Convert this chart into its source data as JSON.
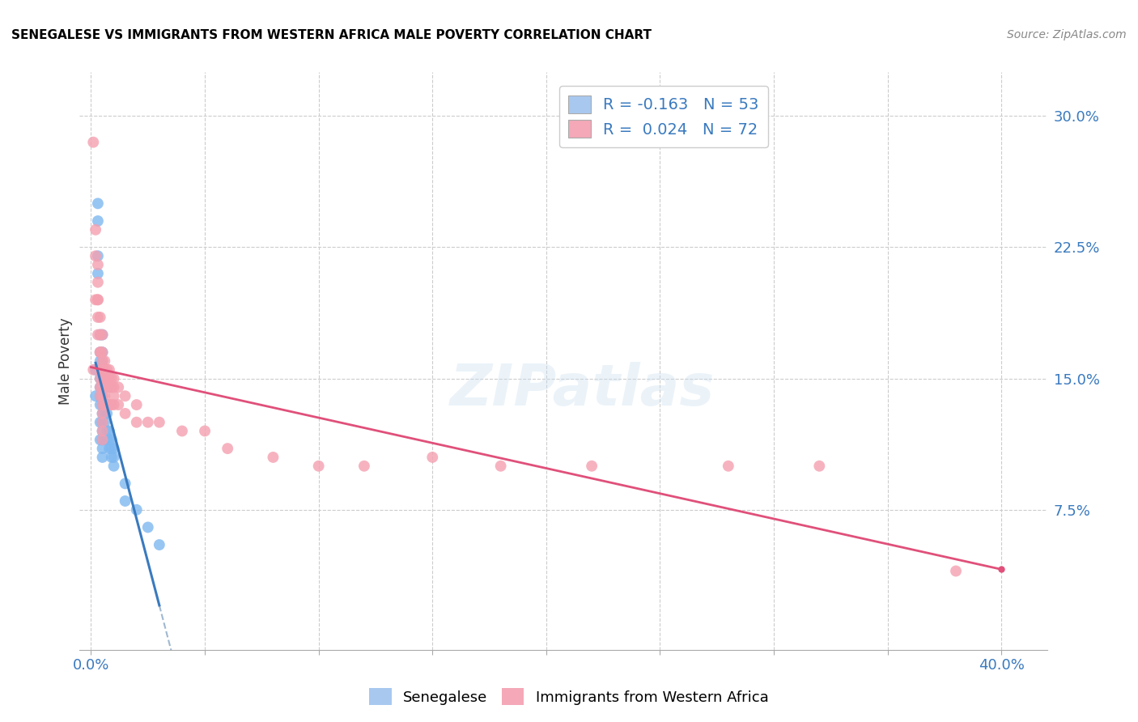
{
  "title": "SENEGALESE VS IMMIGRANTS FROM WESTERN AFRICA MALE POVERTY CORRELATION CHART",
  "source": "Source: ZipAtlas.com",
  "ylabel": "Male Poverty",
  "ytick_labels": [
    "7.5%",
    "15.0%",
    "22.5%",
    "30.0%"
  ],
  "ytick_values": [
    0.075,
    0.15,
    0.225,
    0.3
  ],
  "xtick_values": [
    0.0,
    0.05,
    0.1,
    0.15,
    0.2,
    0.25,
    0.3,
    0.35,
    0.4
  ],
  "xlim": [
    -0.005,
    0.42
  ],
  "ylim": [
    -0.005,
    0.325
  ],
  "legend1_label": "R = -0.163   N = 53",
  "legend2_label": "R =  0.024   N = 72",
  "legend1_color": "#a8c8f0",
  "legend2_color": "#f4a8b8",
  "scatter1_color": "#7eb8f0",
  "scatter2_color": "#f4a0b0",
  "line1_color": "#3a7abf",
  "line2_color": "#e0507a",
  "trend1_color": "#a0b8d0",
  "watermark": "ZIPatlas",
  "senegalese_x": [
    0.002,
    0.002,
    0.003,
    0.003,
    0.003,
    0.003,
    0.004,
    0.004,
    0.004,
    0.004,
    0.004,
    0.004,
    0.004,
    0.004,
    0.004,
    0.004,
    0.005,
    0.005,
    0.005,
    0.005,
    0.005,
    0.005,
    0.005,
    0.005,
    0.005,
    0.005,
    0.005,
    0.005,
    0.005,
    0.005,
    0.006,
    0.006,
    0.006,
    0.006,
    0.006,
    0.007,
    0.007,
    0.007,
    0.007,
    0.008,
    0.008,
    0.008,
    0.009,
    0.009,
    0.009,
    0.01,
    0.01,
    0.01,
    0.015,
    0.015,
    0.02,
    0.025,
    0.03
  ],
  "senegalese_y": [
    0.155,
    0.14,
    0.25,
    0.24,
    0.22,
    0.21,
    0.175,
    0.165,
    0.16,
    0.155,
    0.15,
    0.145,
    0.14,
    0.135,
    0.125,
    0.115,
    0.175,
    0.165,
    0.16,
    0.155,
    0.15,
    0.145,
    0.14,
    0.135,
    0.13,
    0.125,
    0.12,
    0.115,
    0.11,
    0.105,
    0.145,
    0.135,
    0.13,
    0.125,
    0.115,
    0.135,
    0.13,
    0.12,
    0.115,
    0.12,
    0.115,
    0.11,
    0.115,
    0.11,
    0.105,
    0.11,
    0.105,
    0.1,
    0.09,
    0.08,
    0.075,
    0.065,
    0.055
  ],
  "western_africa_x": [
    0.001,
    0.001,
    0.002,
    0.002,
    0.002,
    0.003,
    0.003,
    0.003,
    0.003,
    0.003,
    0.003,
    0.004,
    0.004,
    0.004,
    0.004,
    0.004,
    0.004,
    0.004,
    0.004,
    0.005,
    0.005,
    0.005,
    0.005,
    0.005,
    0.005,
    0.005,
    0.005,
    0.005,
    0.005,
    0.005,
    0.005,
    0.006,
    0.006,
    0.006,
    0.006,
    0.006,
    0.006,
    0.007,
    0.007,
    0.007,
    0.007,
    0.008,
    0.008,
    0.008,
    0.008,
    0.009,
    0.009,
    0.009,
    0.01,
    0.01,
    0.01,
    0.01,
    0.012,
    0.012,
    0.015,
    0.015,
    0.02,
    0.02,
    0.025,
    0.03,
    0.04,
    0.05,
    0.06,
    0.08,
    0.1,
    0.12,
    0.15,
    0.18,
    0.22,
    0.28,
    0.32,
    0.38
  ],
  "western_africa_y": [
    0.285,
    0.155,
    0.235,
    0.22,
    0.195,
    0.215,
    0.195,
    0.185,
    0.175,
    0.205,
    0.195,
    0.185,
    0.175,
    0.165,
    0.165,
    0.155,
    0.15,
    0.145,
    0.14,
    0.175,
    0.165,
    0.16,
    0.155,
    0.15,
    0.145,
    0.14,
    0.135,
    0.13,
    0.125,
    0.12,
    0.115,
    0.16,
    0.155,
    0.15,
    0.145,
    0.14,
    0.135,
    0.155,
    0.15,
    0.145,
    0.135,
    0.155,
    0.15,
    0.145,
    0.135,
    0.15,
    0.145,
    0.135,
    0.15,
    0.145,
    0.14,
    0.135,
    0.145,
    0.135,
    0.14,
    0.13,
    0.135,
    0.125,
    0.125,
    0.125,
    0.12,
    0.12,
    0.11,
    0.105,
    0.1,
    0.1,
    0.105,
    0.1,
    0.1,
    0.1,
    0.1,
    0.04
  ]
}
